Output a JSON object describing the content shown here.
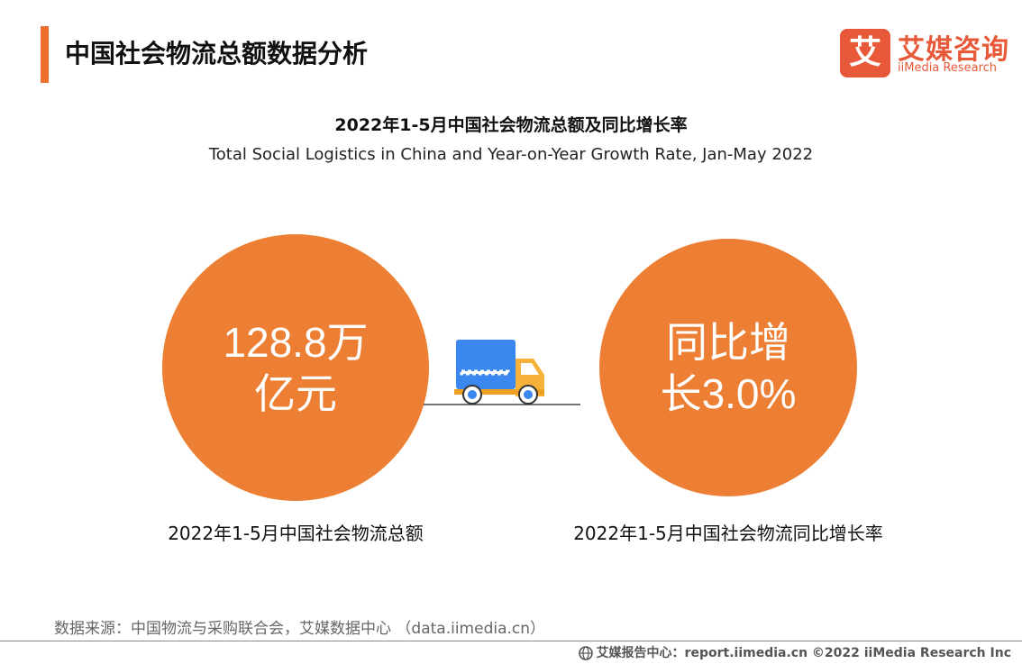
{
  "header": {
    "title": "中国社会物流总额数据分析",
    "accent_color": "#ee6f2d"
  },
  "logo": {
    "glyph": "艾",
    "name_cn": "艾媒咨询",
    "name_en": "iiMedia Research",
    "color": "#e8593a"
  },
  "chart_data": {
    "type": "other",
    "title": "2022年1-5月中国社会物流总额及同比增长率",
    "subtitle": "Total Social Logistics in China and Year-on-Year Growth Rate, Jan-May 2022",
    "circle_color": "#ec7f34",
    "items": [
      {
        "value_text": [
          "128.8万",
          "亿元"
        ],
        "value": 128.8,
        "label": "2022年1-5月中国社会物流总额"
      },
      {
        "value_text": [
          "同比增",
          "长3.0%"
        ],
        "value": 3.0,
        "label": "2022年1-5月中国社会物流同比增长率"
      }
    ],
    "center_icon": "delivery-truck-icon"
  },
  "source": "数据来源：中国物流与采购联合会，艾媒数据中心 （data.iimedia.cn）",
  "footer": {
    "icon": "globe-icon",
    "text": "艾媒报告中心：report.iimedia.cn  ©2022  iiMedia Research  Inc"
  }
}
